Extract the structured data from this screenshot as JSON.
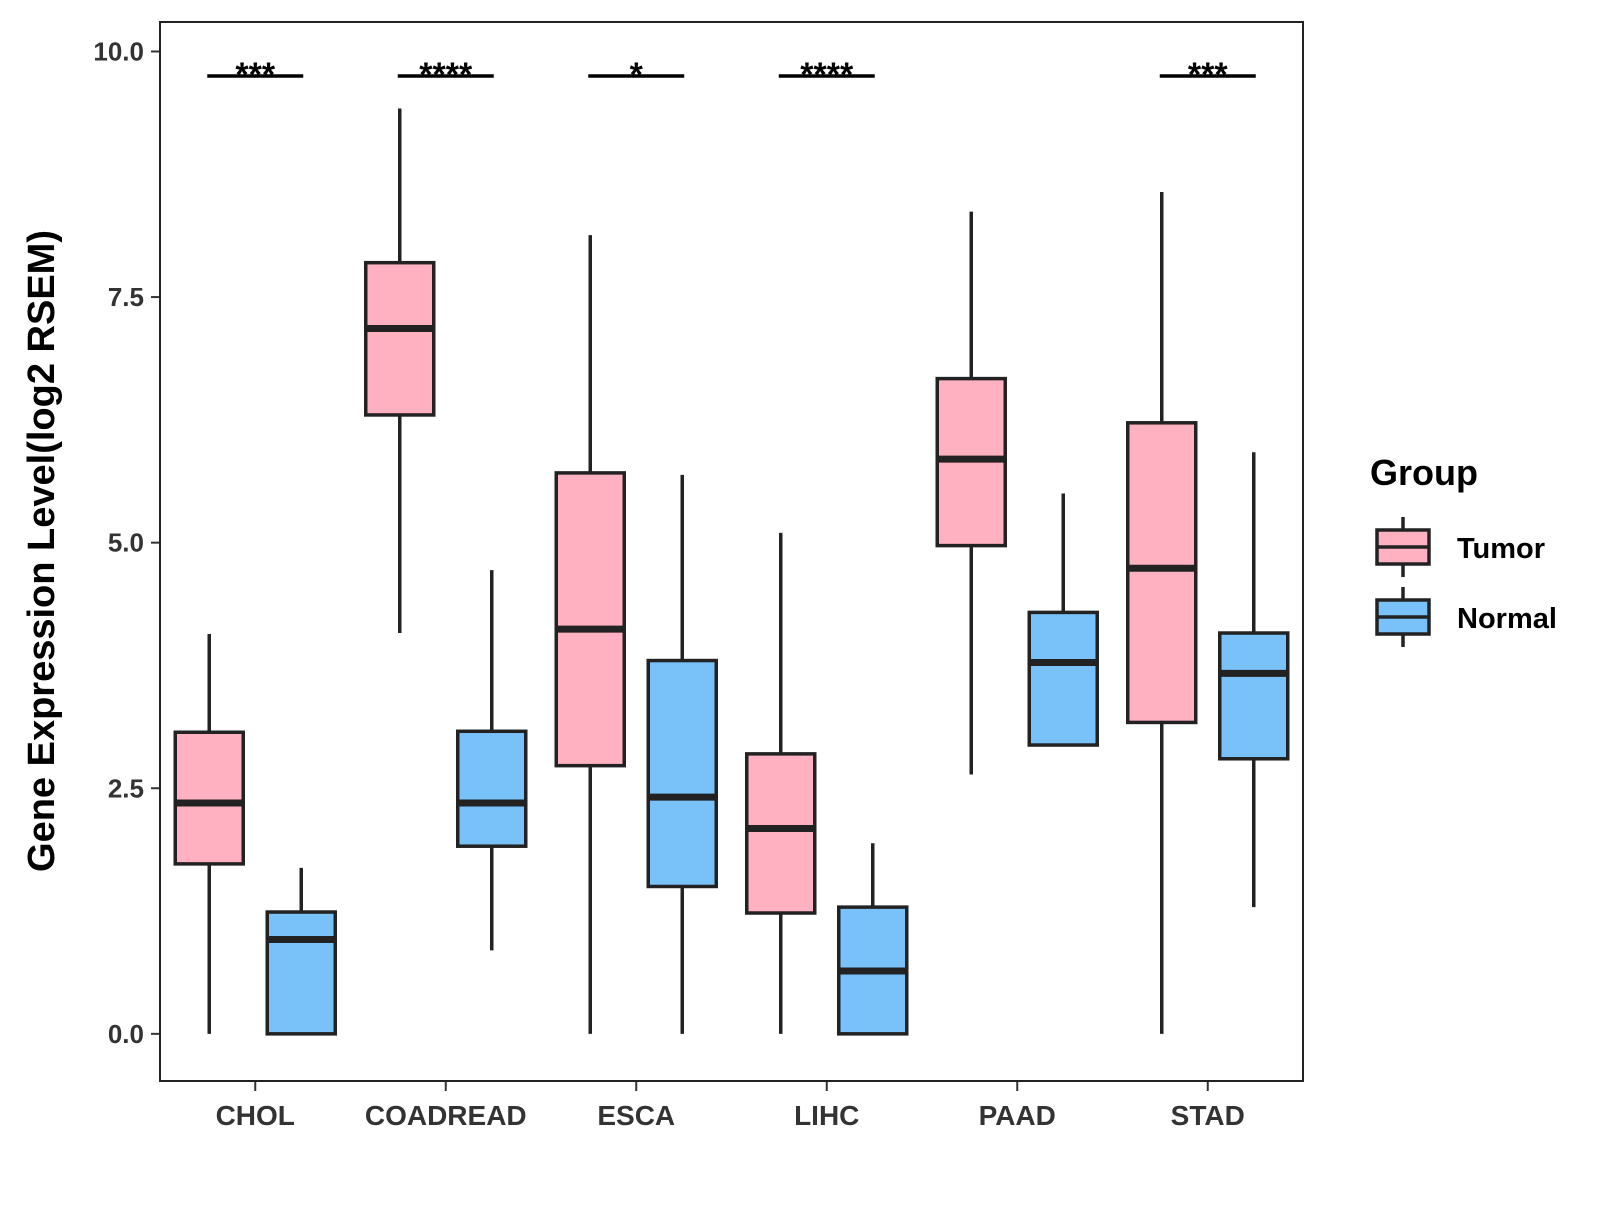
{
  "chart_data": {
    "type": "boxplot",
    "ylabel": "Gene Expression Level(log2 RSEM)",
    "xlabel": "",
    "ylim": [
      -0.48,
      10.3
    ],
    "yticks": [
      0.0,
      2.5,
      5.0,
      7.5,
      10.0
    ],
    "ytick_labels": [
      "0.0",
      "2.5",
      "5.0",
      "7.5",
      "10.0"
    ],
    "categories": [
      "CHOL",
      "COADREAD",
      "ESCA",
      "LIHC",
      "PAAD",
      "STAD"
    ],
    "legend": {
      "title": "Group",
      "position": "right",
      "entries": [
        "Tumor",
        "Normal"
      ]
    },
    "series": [
      {
        "name": "Tumor",
        "color": "#FFB1C1",
        "boxes": [
          {
            "min": 0.0,
            "q1": 1.73,
            "median": 2.35,
            "q3": 3.07,
            "max": 4.07
          },
          {
            "min": 4.08,
            "q1": 6.3,
            "median": 7.18,
            "q3": 7.85,
            "max": 9.42
          },
          {
            "min": 0.0,
            "q1": 2.73,
            "median": 4.12,
            "q3": 5.71,
            "max": 8.13
          },
          {
            "min": 0.0,
            "q1": 1.23,
            "median": 2.09,
            "q3": 2.85,
            "max": 5.1
          },
          {
            "min": 2.64,
            "q1": 4.97,
            "median": 5.85,
            "q3": 6.67,
            "max": 8.37
          },
          {
            "min": 0.0,
            "q1": 3.17,
            "median": 4.74,
            "q3": 6.22,
            "max": 8.57
          }
        ]
      },
      {
        "name": "Normal",
        "color": "#78C1F9",
        "boxes": [
          {
            "min": 0.0,
            "q1": 0.0,
            "median": 0.96,
            "q3": 1.24,
            "max": 1.69
          },
          {
            "min": 0.85,
            "q1": 1.91,
            "median": 2.35,
            "q3": 3.08,
            "max": 4.72
          },
          {
            "min": 0.0,
            "q1": 1.5,
            "median": 2.41,
            "q3": 3.8,
            "max": 5.69
          },
          {
            "min": 0.0,
            "q1": 0.0,
            "median": 0.64,
            "q3": 1.29,
            "max": 1.94
          },
          {
            "min": 2.94,
            "q1": 2.94,
            "median": 3.78,
            "q3": 4.29,
            "max": 5.5
          },
          {
            "min": 1.29,
            "q1": 2.8,
            "median": 3.67,
            "q3": 4.08,
            "max": 5.92
          }
        ]
      }
    ],
    "significance": [
      {
        "category": "CHOL",
        "label": "***"
      },
      {
        "category": "COADREAD",
        "label": "****"
      },
      {
        "category": "ESCA",
        "label": "*"
      },
      {
        "category": "LIHC",
        "label": "****"
      },
      {
        "category": "STAD",
        "label": "***"
      }
    ],
    "significance_y": 9.75
  }
}
